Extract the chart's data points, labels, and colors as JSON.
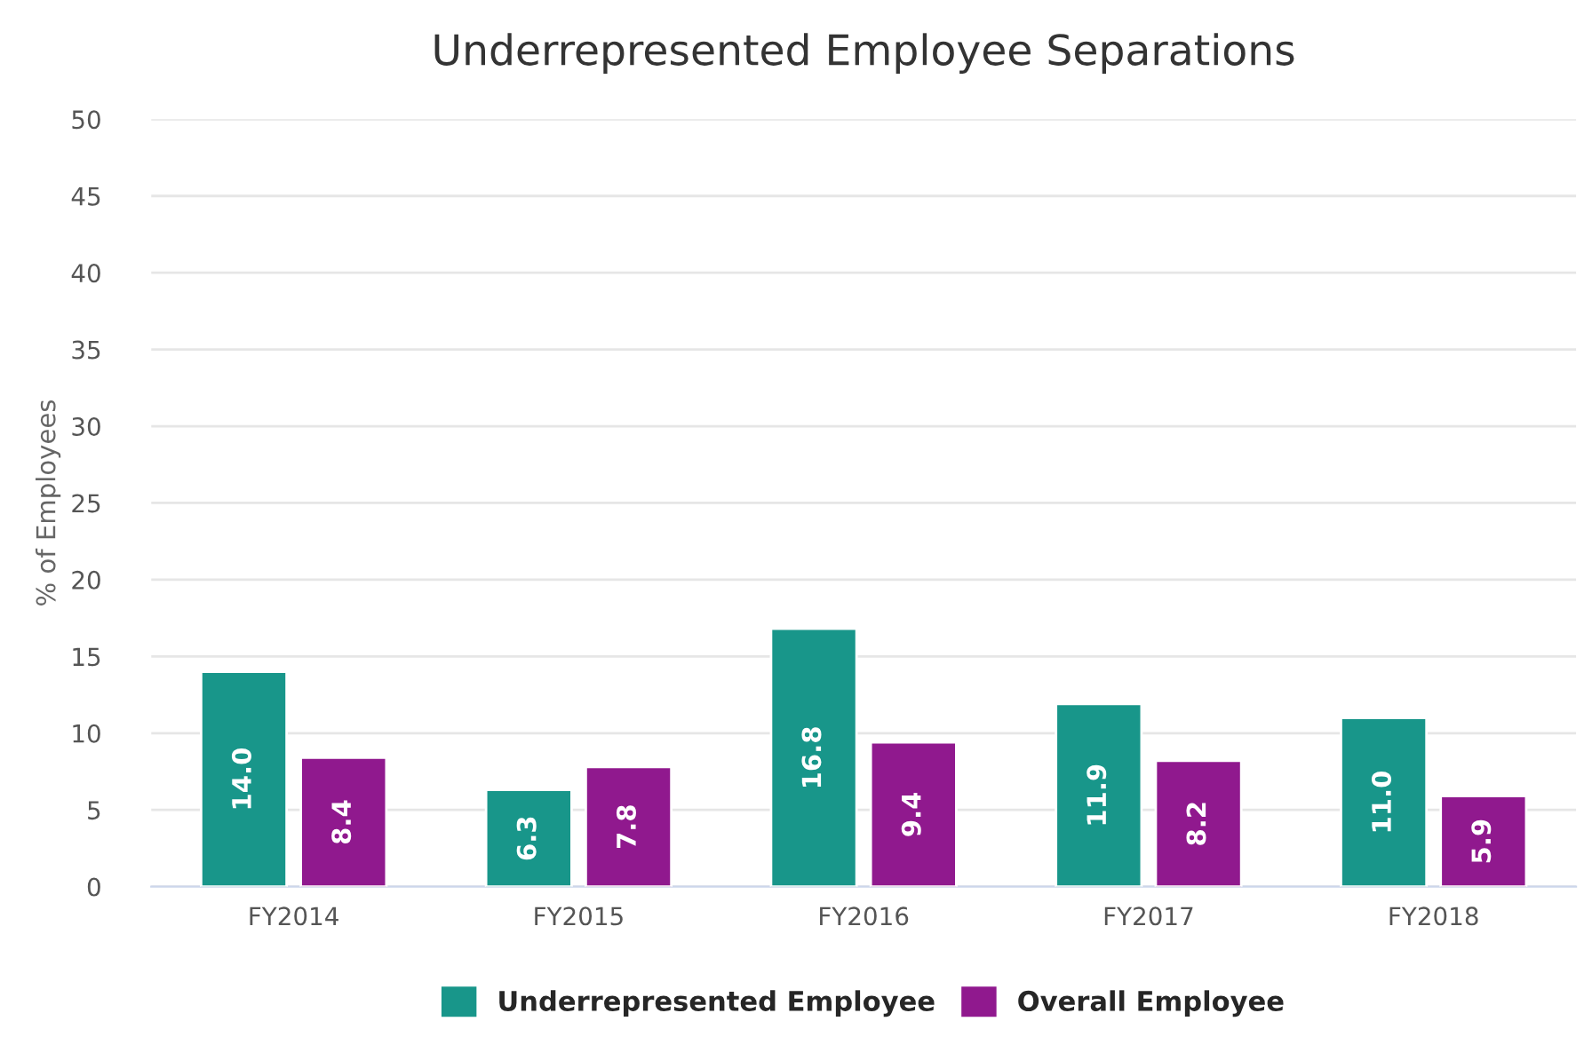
{
  "chart_data": {
    "type": "bar",
    "title": "Underrepresented Employee Separations",
    "ylabel": "% of Employees",
    "categories": [
      "FY2014",
      "FY2015",
      "FY2016",
      "FY2017",
      "FY2018"
    ],
    "series": [
      {
        "name": "Underrepresented Employee",
        "color": "#18968a",
        "values": [
          14.0,
          6.3,
          16.8,
          11.9,
          11.0
        ],
        "value_labels": [
          "14.0",
          "6.3",
          "16.8",
          "11.9",
          "11.0"
        ]
      },
      {
        "name": "Overall Employee",
        "color": "#90198e",
        "values": [
          8.4,
          7.8,
          9.4,
          8.2,
          5.9
        ],
        "value_labels": [
          "8.4",
          "7.8",
          "9.4",
          "8.2",
          "5.9"
        ]
      }
    ],
    "ylim": [
      0,
      50
    ],
    "yticks": [
      0,
      5,
      10,
      15,
      20,
      25,
      30,
      35,
      40,
      45,
      50
    ],
    "grid": "y",
    "legend": "bottom"
  }
}
